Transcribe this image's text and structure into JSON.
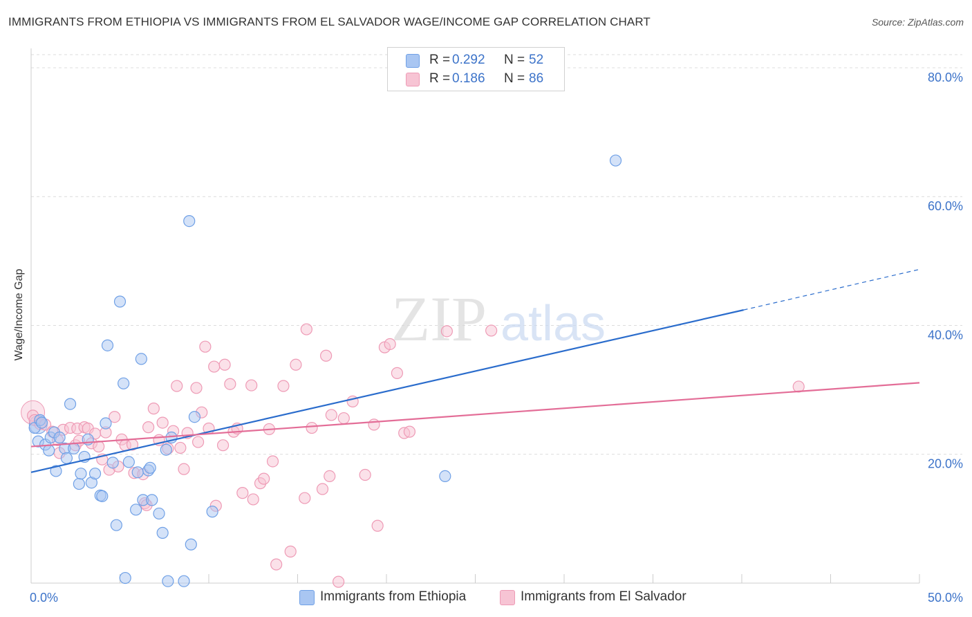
{
  "title": "IMMIGRANTS FROM ETHIOPIA VS IMMIGRANTS FROM EL SALVADOR WAGE/INCOME GAP CORRELATION CHART",
  "source": "Source: ZipAtlas.com",
  "watermark": {
    "zip": "ZIP",
    "atlas": "atlas"
  },
  "legend": {
    "r_label": "R =",
    "n_label": "N =",
    "series": [
      {
        "r": "0.292",
        "n": "52"
      },
      {
        "r": "0.186",
        "n": "86"
      }
    ]
  },
  "bottom_legend": [
    "Immigrants from Ethiopia",
    "Immigrants from El Salvador"
  ],
  "chart_data": {
    "type": "scatter",
    "title": "IMMIGRANTS FROM ETHIOPIA VS IMMIGRANTS FROM EL SALVADOR WAGE/INCOME GAP CORRELATION CHART",
    "xlabel": "",
    "ylabel": "Wage/Income Gap",
    "xlim": [
      0,
      50
    ],
    "ylim": [
      0,
      83
    ],
    "x_tick_labels": {
      "left": "0.0%",
      "right": "50.0%"
    },
    "y_ticks": [
      {
        "value": 20,
        "label": "20.0%"
      },
      {
        "value": 40,
        "label": "40.0%"
      },
      {
        "value": 60,
        "label": "60.0%"
      },
      {
        "value": 80,
        "label": "80.0%"
      }
    ],
    "grid": true,
    "legend_position": "top-center",
    "series": [
      {
        "name": "Immigrants from Ethiopia",
        "color": "#6fa0e6",
        "fill": "#a9c6f2",
        "line_color": "#2a6ccc",
        "trend": {
          "x0": 0,
          "y0": 17.2,
          "x1": 40.1,
          "y1": 42.4,
          "dash_to_x": 50,
          "dash_to_y": 48.7
        },
        "points": [
          [
            0.2,
            24.1
          ],
          [
            0.4,
            22.0
          ],
          [
            0.5,
            25.3
          ],
          [
            0.6,
            24.9
          ],
          [
            0.8,
            21.5
          ],
          [
            1.0,
            20.6
          ],
          [
            1.1,
            22.6
          ],
          [
            1.3,
            23.4
          ],
          [
            1.4,
            17.4
          ],
          [
            1.6,
            22.6
          ],
          [
            1.9,
            20.9
          ],
          [
            2.0,
            19.4
          ],
          [
            2.2,
            27.8
          ],
          [
            2.4,
            20.9
          ],
          [
            2.7,
            15.4
          ],
          [
            2.8,
            17.0
          ],
          [
            3.0,
            19.6
          ],
          [
            3.2,
            22.3
          ],
          [
            3.4,
            15.6
          ],
          [
            3.6,
            17.0
          ],
          [
            3.9,
            13.6
          ],
          [
            4.0,
            13.5
          ],
          [
            4.2,
            24.8
          ],
          [
            4.3,
            36.9
          ],
          [
            4.6,
            18.7
          ],
          [
            4.8,
            9.0
          ],
          [
            5.0,
            43.7
          ],
          [
            5.2,
            31.0
          ],
          [
            5.3,
            0.8
          ],
          [
            5.5,
            18.8
          ],
          [
            5.9,
            11.4
          ],
          [
            6.0,
            17.2
          ],
          [
            6.2,
            34.8
          ],
          [
            6.3,
            12.9
          ],
          [
            6.6,
            17.5
          ],
          [
            6.7,
            17.9
          ],
          [
            6.8,
            12.9
          ],
          [
            7.2,
            10.8
          ],
          [
            7.4,
            7.8
          ],
          [
            7.6,
            20.7
          ],
          [
            7.7,
            0.3
          ],
          [
            7.9,
            22.6
          ],
          [
            8.6,
            0.3
          ],
          [
            8.9,
            56.2
          ],
          [
            9.0,
            6.0
          ],
          [
            9.2,
            25.8
          ],
          [
            10.2,
            11.1
          ],
          [
            23.3,
            16.6
          ],
          [
            32.9,
            65.6
          ]
        ]
      },
      {
        "name": "Immigrants from El Salvador",
        "color": "#ee9ab5",
        "fill": "#f7c4d4",
        "line_color": "#e36d97",
        "trend": {
          "x0": 0,
          "y0": 21.2,
          "x1": 50,
          "y1": 31.1
        },
        "points": [
          [
            0.1,
            26.0
          ],
          [
            0.2,
            25.3
          ],
          [
            0.5,
            24.7
          ],
          [
            0.8,
            24.6
          ],
          [
            1.2,
            23.5
          ],
          [
            1.5,
            22.2
          ],
          [
            1.6,
            20.2
          ],
          [
            1.8,
            23.8
          ],
          [
            2.2,
            24.1
          ],
          [
            2.5,
            21.4
          ],
          [
            2.6,
            24.0
          ],
          [
            2.7,
            22.1
          ],
          [
            3.0,
            24.2
          ],
          [
            3.2,
            24.0
          ],
          [
            3.4,
            21.7
          ],
          [
            3.6,
            23.2
          ],
          [
            3.8,
            21.2
          ],
          [
            4.0,
            19.2
          ],
          [
            4.2,
            23.4
          ],
          [
            4.4,
            17.6
          ],
          [
            4.7,
            25.8
          ],
          [
            4.9,
            18.1
          ],
          [
            5.1,
            22.3
          ],
          [
            5.3,
            21.4
          ],
          [
            5.7,
            21.5
          ],
          [
            5.8,
            17.1
          ],
          [
            6.3,
            16.9
          ],
          [
            6.4,
            12.4
          ],
          [
            6.5,
            12.1
          ],
          [
            6.6,
            24.2
          ],
          [
            6.9,
            27.1
          ],
          [
            7.2,
            22.2
          ],
          [
            7.4,
            24.9
          ],
          [
            7.7,
            20.9
          ],
          [
            8.0,
            23.6
          ],
          [
            8.2,
            30.6
          ],
          [
            8.4,
            21.0
          ],
          [
            8.6,
            17.7
          ],
          [
            8.8,
            23.3
          ],
          [
            9.3,
            30.3
          ],
          [
            9.4,
            21.9
          ],
          [
            9.6,
            26.5
          ],
          [
            9.8,
            36.7
          ],
          [
            10.0,
            24.0
          ],
          [
            10.3,
            33.6
          ],
          [
            10.4,
            12.0
          ],
          [
            10.8,
            21.4
          ],
          [
            10.9,
            33.9
          ],
          [
            11.2,
            30.9
          ],
          [
            11.4,
            23.5
          ],
          [
            11.6,
            24.0
          ],
          [
            11.9,
            14.0
          ],
          [
            12.4,
            30.7
          ],
          [
            12.5,
            13.0
          ],
          [
            12.9,
            15.5
          ],
          [
            13.1,
            16.2
          ],
          [
            13.4,
            23.9
          ],
          [
            13.6,
            18.9
          ],
          [
            13.8,
            2.9
          ],
          [
            14.2,
            30.6
          ],
          [
            14.6,
            4.9
          ],
          [
            14.9,
            33.9
          ],
          [
            15.4,
            13.2
          ],
          [
            15.5,
            39.4
          ],
          [
            15.8,
            24.1
          ],
          [
            16.4,
            14.6
          ],
          [
            16.6,
            35.3
          ],
          [
            16.8,
            16.6
          ],
          [
            16.9,
            26.1
          ],
          [
            17.3,
            0.2
          ],
          [
            17.6,
            25.6
          ],
          [
            18.1,
            28.2
          ],
          [
            18.8,
            16.8
          ],
          [
            19.3,
            24.6
          ],
          [
            19.5,
            8.9
          ],
          [
            19.9,
            36.6
          ],
          [
            20.2,
            37.1
          ],
          [
            20.6,
            32.6
          ],
          [
            21.0,
            23.3
          ],
          [
            21.3,
            23.5
          ],
          [
            23.4,
            39.1
          ],
          [
            25.9,
            39.2
          ],
          [
            43.2,
            30.5
          ]
        ]
      }
    ]
  }
}
